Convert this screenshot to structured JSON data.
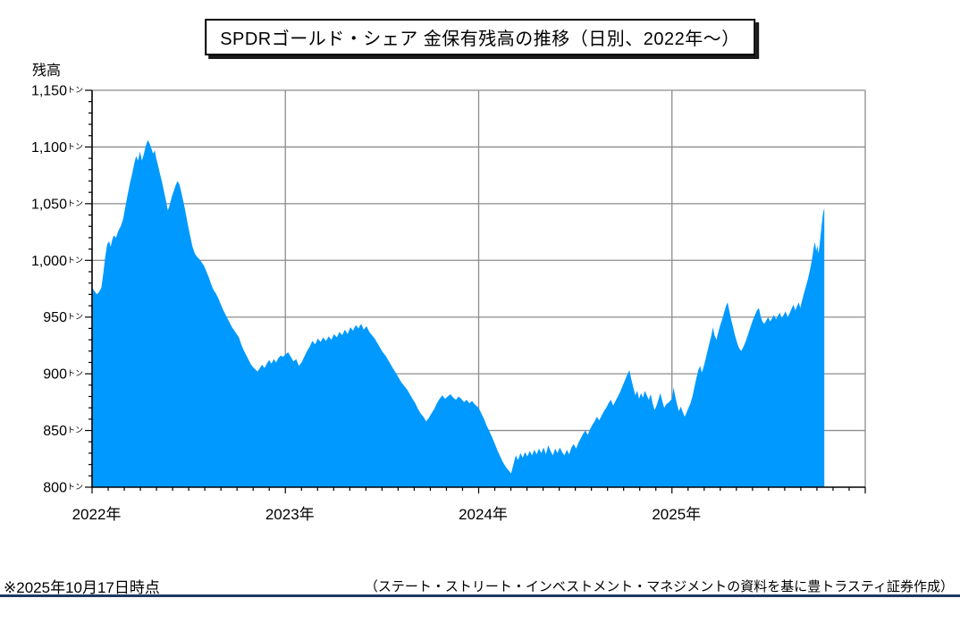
{
  "title": "SPDRゴールド・シェア 金保有残高の推移（日別、2022年～）",
  "footer": {
    "as_of_note": "※2025年10月17日時点",
    "credit": "（ステート・ストリート・インベストメント・マネジメントの資料を基に豊トラスティ証券作成）"
  },
  "colors": {
    "area": "#0099FF",
    "grid": "#8C8C8C",
    "axis": "#000000",
    "text": "#000000",
    "rule": "#1F3864"
  },
  "chart_data": {
    "type": "area",
    "title": "SPDRゴールド・シェア 金保有残高の推移（日別、2022年～）",
    "series_name": "SPDRゴールド・シェア 金保有残高",
    "ylabel": "残高",
    "y_unit": "トン",
    "ylim": [
      800,
      1150
    ],
    "y_major_step": 50,
    "y_minor_step": 10,
    "xlim": [
      2022.0,
      2026.0
    ],
    "x_tick_years": [
      2022,
      2023,
      2024,
      2025
    ],
    "x_year_suffix": "年",
    "x_minor_per_year": 12,
    "grid": true,
    "legend": false,
    "last_point_note": "2025-10-17 ≈ 1,046トン",
    "points": [
      [
        2022.0,
        976
      ],
      [
        2022.012,
        973
      ],
      [
        2022.024,
        970
      ],
      [
        2022.036,
        972
      ],
      [
        2022.048,
        976
      ],
      [
        2022.058,
        988
      ],
      [
        2022.068,
        1003
      ],
      [
        2022.078,
        1014
      ],
      [
        2022.088,
        1017
      ],
      [
        2022.096,
        1012
      ],
      [
        2022.104,
        1018
      ],
      [
        2022.112,
        1022
      ],
      [
        2022.124,
        1020
      ],
      [
        2022.136,
        1026
      ],
      [
        2022.148,
        1030
      ],
      [
        2022.16,
        1036
      ],
      [
        2022.172,
        1047
      ],
      [
        2022.184,
        1058
      ],
      [
        2022.196,
        1068
      ],
      [
        2022.208,
        1077
      ],
      [
        2022.218,
        1085
      ],
      [
        2022.228,
        1092
      ],
      [
        2022.238,
        1088
      ],
      [
        2022.248,
        1096
      ],
      [
        2022.258,
        1088
      ],
      [
        2022.268,
        1094
      ],
      [
        2022.278,
        1101
      ],
      [
        2022.288,
        1106
      ],
      [
        2022.298,
        1103
      ],
      [
        2022.308,
        1098
      ],
      [
        2022.316,
        1094
      ],
      [
        2022.324,
        1097
      ],
      [
        2022.332,
        1090
      ],
      [
        2022.342,
        1083
      ],
      [
        2022.352,
        1076
      ],
      [
        2022.362,
        1069
      ],
      [
        2022.372,
        1061
      ],
      [
        2022.382,
        1053
      ],
      [
        2022.392,
        1044
      ],
      [
        2022.402,
        1049
      ],
      [
        2022.412,
        1056
      ],
      [
        2022.422,
        1061
      ],
      [
        2022.432,
        1066
      ],
      [
        2022.442,
        1070
      ],
      [
        2022.452,
        1067
      ],
      [
        2022.462,
        1060
      ],
      [
        2022.472,
        1052
      ],
      [
        2022.484,
        1042
      ],
      [
        2022.496,
        1031
      ],
      [
        2022.508,
        1021
      ],
      [
        2022.52,
        1012
      ],
      [
        2022.532,
        1006
      ],
      [
        2022.544,
        1003
      ],
      [
        2022.556,
        1001
      ],
      [
        2022.568,
        998
      ],
      [
        2022.58,
        995
      ],
      [
        2022.592,
        990
      ],
      [
        2022.604,
        985
      ],
      [
        2022.616,
        979
      ],
      [
        2022.628,
        974
      ],
      [
        2022.64,
        971
      ],
      [
        2022.652,
        967
      ],
      [
        2022.664,
        962
      ],
      [
        2022.676,
        957
      ],
      [
        2022.688,
        953
      ],
      [
        2022.7,
        949
      ],
      [
        2022.712,
        945
      ],
      [
        2022.724,
        941
      ],
      [
        2022.736,
        938
      ],
      [
        2022.748,
        935
      ],
      [
        2022.76,
        932
      ],
      [
        2022.772,
        926
      ],
      [
        2022.784,
        921
      ],
      [
        2022.796,
        917
      ],
      [
        2022.808,
        913
      ],
      [
        2022.82,
        909
      ],
      [
        2022.832,
        906
      ],
      [
        2022.844,
        904
      ],
      [
        2022.856,
        902
      ],
      [
        2022.868,
        905
      ],
      [
        2022.88,
        908
      ],
      [
        2022.892,
        905
      ],
      [
        2022.904,
        909
      ],
      [
        2022.916,
        912
      ],
      [
        2022.928,
        909
      ],
      [
        2022.94,
        913
      ],
      [
        2022.952,
        910
      ],
      [
        2022.964,
        914
      ],
      [
        2022.976,
        916
      ],
      [
        2022.988,
        915
      ],
      [
        2023.0,
        917
      ],
      [
        2023.014,
        919
      ],
      [
        2023.028,
        915
      ],
      [
        2023.042,
        911
      ],
      [
        2023.056,
        913
      ],
      [
        2023.07,
        907
      ],
      [
        2023.084,
        910
      ],
      [
        2023.098,
        915
      ],
      [
        2023.112,
        920
      ],
      [
        2023.126,
        924
      ],
      [
        2023.14,
        929
      ],
      [
        2023.154,
        926
      ],
      [
        2023.168,
        931
      ],
      [
        2023.182,
        928
      ],
      [
        2023.196,
        932
      ],
      [
        2023.21,
        929
      ],
      [
        2023.224,
        933
      ],
      [
        2023.238,
        930
      ],
      [
        2023.252,
        935
      ],
      [
        2023.266,
        932
      ],
      [
        2023.28,
        937
      ],
      [
        2023.294,
        934
      ],
      [
        2023.308,
        939
      ],
      [
        2023.322,
        935
      ],
      [
        2023.336,
        941
      ],
      [
        2023.35,
        938
      ],
      [
        2023.364,
        943
      ],
      [
        2023.378,
        940
      ],
      [
        2023.392,
        944
      ],
      [
        2023.406,
        939
      ],
      [
        2023.42,
        942
      ],
      [
        2023.434,
        937
      ],
      [
        2023.448,
        934
      ],
      [
        2023.462,
        931
      ],
      [
        2023.476,
        927
      ],
      [
        2023.49,
        923
      ],
      [
        2023.504,
        919
      ],
      [
        2023.518,
        916
      ],
      [
        2023.532,
        912
      ],
      [
        2023.546,
        908
      ],
      [
        2023.56,
        904
      ],
      [
        2023.574,
        900
      ],
      [
        2023.588,
        896
      ],
      [
        2023.602,
        892
      ],
      [
        2023.616,
        889
      ],
      [
        2023.63,
        886
      ],
      [
        2023.644,
        882
      ],
      [
        2023.658,
        878
      ],
      [
        2023.672,
        874
      ],
      [
        2023.686,
        869
      ],
      [
        2023.7,
        865
      ],
      [
        2023.714,
        862
      ],
      [
        2023.728,
        858
      ],
      [
        2023.742,
        861
      ],
      [
        2023.756,
        865
      ],
      [
        2023.77,
        869
      ],
      [
        2023.784,
        874
      ],
      [
        2023.798,
        878
      ],
      [
        2023.812,
        881
      ],
      [
        2023.826,
        878
      ],
      [
        2023.84,
        880
      ],
      [
        2023.854,
        882
      ],
      [
        2023.868,
        879
      ],
      [
        2023.882,
        877
      ],
      [
        2023.896,
        880
      ],
      [
        2023.91,
        878
      ],
      [
        2023.924,
        875
      ],
      [
        2023.938,
        877
      ],
      [
        2023.952,
        874
      ],
      [
        2023.966,
        876
      ],
      [
        2023.98,
        873
      ],
      [
        2024.0,
        870
      ],
      [
        2024.014,
        865
      ],
      [
        2024.028,
        860
      ],
      [
        2024.042,
        854
      ],
      [
        2024.056,
        849
      ],
      [
        2024.07,
        844
      ],
      [
        2024.084,
        838
      ],
      [
        2024.098,
        832
      ],
      [
        2024.112,
        827
      ],
      [
        2024.126,
        822
      ],
      [
        2024.14,
        818
      ],
      [
        2024.154,
        815
      ],
      [
        2024.168,
        812
      ],
      [
        2024.18,
        820
      ],
      [
        2024.192,
        828
      ],
      [
        2024.204,
        824
      ],
      [
        2024.216,
        830
      ],
      [
        2024.228,
        826
      ],
      [
        2024.24,
        831
      ],
      [
        2024.252,
        827
      ],
      [
        2024.264,
        832
      ],
      [
        2024.276,
        828
      ],
      [
        2024.288,
        833
      ],
      [
        2024.3,
        829
      ],
      [
        2024.312,
        834
      ],
      [
        2024.324,
        830
      ],
      [
        2024.336,
        835
      ],
      [
        2024.348,
        829
      ],
      [
        2024.36,
        837
      ],
      [
        2024.372,
        832
      ],
      [
        2024.384,
        828
      ],
      [
        2024.396,
        834
      ],
      [
        2024.408,
        830
      ],
      [
        2024.42,
        835
      ],
      [
        2024.432,
        831
      ],
      [
        2024.444,
        828
      ],
      [
        2024.456,
        833
      ],
      [
        2024.468,
        829
      ],
      [
        2024.48,
        835
      ],
      [
        2024.492,
        838
      ],
      [
        2024.504,
        834
      ],
      [
        2024.516,
        839
      ],
      [
        2024.528,
        843
      ],
      [
        2024.54,
        847
      ],
      [
        2024.552,
        850
      ],
      [
        2024.564,
        846
      ],
      [
        2024.576,
        851
      ],
      [
        2024.588,
        855
      ],
      [
        2024.6,
        858
      ],
      [
        2024.612,
        862
      ],
      [
        2024.624,
        859
      ],
      [
        2024.636,
        863
      ],
      [
        2024.648,
        867
      ],
      [
        2024.66,
        870
      ],
      [
        2024.672,
        874
      ],
      [
        2024.684,
        877
      ],
      [
        2024.696,
        872
      ],
      [
        2024.708,
        876
      ],
      [
        2024.72,
        880
      ],
      [
        2024.732,
        884
      ],
      [
        2024.744,
        889
      ],
      [
        2024.756,
        894
      ],
      [
        2024.768,
        899
      ],
      [
        2024.78,
        903
      ],
      [
        2024.79,
        895
      ],
      [
        2024.8,
        888
      ],
      [
        2024.81,
        881
      ],
      [
        2024.82,
        885
      ],
      [
        2024.83,
        878
      ],
      [
        2024.84,
        883
      ],
      [
        2024.85,
        879
      ],
      [
        2024.86,
        885
      ],
      [
        2024.87,
        881
      ],
      [
        2024.88,
        877
      ],
      [
        2024.89,
        882
      ],
      [
        2024.9,
        874
      ],
      [
        2024.91,
        868
      ],
      [
        2024.92,
        872
      ],
      [
        2024.93,
        877
      ],
      [
        2024.94,
        883
      ],
      [
        2024.95,
        876
      ],
      [
        2024.96,
        870
      ],
      [
        2024.97,
        873
      ],
      [
        2024.985,
        875
      ],
      [
        2025.0,
        878
      ],
      [
        2025.008,
        888
      ],
      [
        2025.016,
        881
      ],
      [
        2025.026,
        873
      ],
      [
        2025.036,
        867
      ],
      [
        2025.046,
        871
      ],
      [
        2025.056,
        866
      ],
      [
        2025.066,
        862
      ],
      [
        2025.076,
        866
      ],
      [
        2025.086,
        870
      ],
      [
        2025.096,
        874
      ],
      [
        2025.106,
        880
      ],
      [
        2025.116,
        888
      ],
      [
        2025.126,
        896
      ],
      [
        2025.136,
        903
      ],
      [
        2025.146,
        907
      ],
      [
        2025.154,
        901
      ],
      [
        2025.164,
        906
      ],
      [
        2025.174,
        913
      ],
      [
        2025.184,
        920
      ],
      [
        2025.194,
        927
      ],
      [
        2025.204,
        934
      ],
      [
        2025.212,
        941
      ],
      [
        2025.22,
        934
      ],
      [
        2025.23,
        930
      ],
      [
        2025.24,
        937
      ],
      [
        2025.25,
        943
      ],
      [
        2025.26,
        948
      ],
      [
        2025.27,
        954
      ],
      [
        2025.28,
        960
      ],
      [
        2025.288,
        963
      ],
      [
        2025.296,
        956
      ],
      [
        2025.306,
        948
      ],
      [
        2025.316,
        941
      ],
      [
        2025.326,
        934
      ],
      [
        2025.336,
        928
      ],
      [
        2025.346,
        923
      ],
      [
        2025.358,
        920
      ],
      [
        2025.37,
        924
      ],
      [
        2025.382,
        929
      ],
      [
        2025.394,
        935
      ],
      [
        2025.406,
        941
      ],
      [
        2025.418,
        947
      ],
      [
        2025.43,
        952
      ],
      [
        2025.44,
        956
      ],
      [
        2025.45,
        958
      ],
      [
        2025.458,
        951
      ],
      [
        2025.468,
        946
      ],
      [
        2025.478,
        944
      ],
      [
        2025.488,
        947
      ],
      [
        2025.498,
        950
      ],
      [
        2025.508,
        946
      ],
      [
        2025.518,
        949
      ],
      [
        2025.528,
        952
      ],
      [
        2025.538,
        948
      ],
      [
        2025.548,
        951
      ],
      [
        2025.558,
        954
      ],
      [
        2025.568,
        949
      ],
      [
        2025.578,
        952
      ],
      [
        2025.588,
        955
      ],
      [
        2025.598,
        950
      ],
      [
        2025.608,
        953
      ],
      [
        2025.618,
        957
      ],
      [
        2025.628,
        961
      ],
      [
        2025.638,
        956
      ],
      [
        2025.648,
        960
      ],
      [
        2025.656,
        963
      ],
      [
        2025.664,
        958
      ],
      [
        2025.672,
        964
      ],
      [
        2025.68,
        969
      ],
      [
        2025.688,
        974
      ],
      [
        2025.696,
        979
      ],
      [
        2025.704,
        984
      ],
      [
        2025.712,
        990
      ],
      [
        2025.72,
        997
      ],
      [
        2025.728,
        1005
      ],
      [
        2025.734,
        1012
      ],
      [
        2025.74,
        1016
      ],
      [
        2025.746,
        1008
      ],
      [
        2025.752,
        1013
      ],
      [
        2025.758,
        1006
      ],
      [
        2025.764,
        1014
      ],
      [
        2025.77,
        1024
      ],
      [
        2025.776,
        1034
      ],
      [
        2025.782,
        1042
      ],
      [
        2025.788,
        1046
      ]
    ]
  }
}
